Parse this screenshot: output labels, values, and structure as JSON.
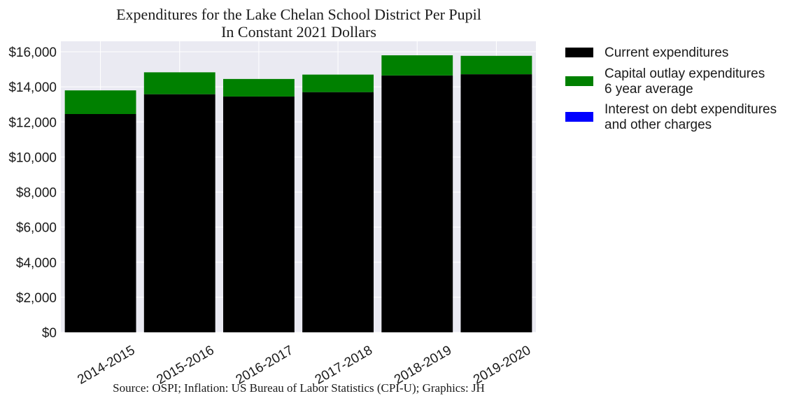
{
  "chart_data": {
    "type": "bar",
    "stacked": true,
    "title_lines": [
      "Expenditures for the Lake Chelan School District Per Pupil",
      "In Constant 2021 Dollars"
    ],
    "source": "Source: OSPI; Inflation: US Bureau of Labor Statistics (CPI-U); Graphics: JH",
    "categories": [
      "2014-2015",
      "2015-2016",
      "2016-2017",
      "2017-2018",
      "2018-2019",
      "2019-2020"
    ],
    "series": [
      {
        "name": "Current expenditures",
        "legend_lines": [
          "Current expenditures"
        ],
        "color": "#000000",
        "values": [
          12450,
          13580,
          13450,
          13700,
          14650,
          14720
        ]
      },
      {
        "name": "Capital outlay expenditures 6 year average",
        "legend_lines": [
          "Capital outlay expenditures",
          "6 year average"
        ],
        "color": "#008000",
        "values": [
          1350,
          1250,
          1000,
          1000,
          1150,
          1050
        ]
      },
      {
        "name": "Interest on debt expenditures and other charges",
        "legend_lines": [
          "Interest on debt expenditures",
          "and other charges"
        ],
        "color": "#0000ff",
        "values": [
          0,
          0,
          0,
          0,
          0,
          0
        ]
      }
    ],
    "ylim": [
      0,
      16600
    ],
    "yticks": [
      0,
      2000,
      4000,
      6000,
      8000,
      10000,
      12000,
      14000,
      16000
    ],
    "ytick_labels": [
      "$0",
      "$2,000",
      "$4,000",
      "$6,000",
      "$8,000",
      "$10,000",
      "$12,000",
      "$14,000",
      "$16,000"
    ],
    "xlabel": "",
    "ylabel": "",
    "grid": true,
    "legend_position": "outside-right"
  }
}
